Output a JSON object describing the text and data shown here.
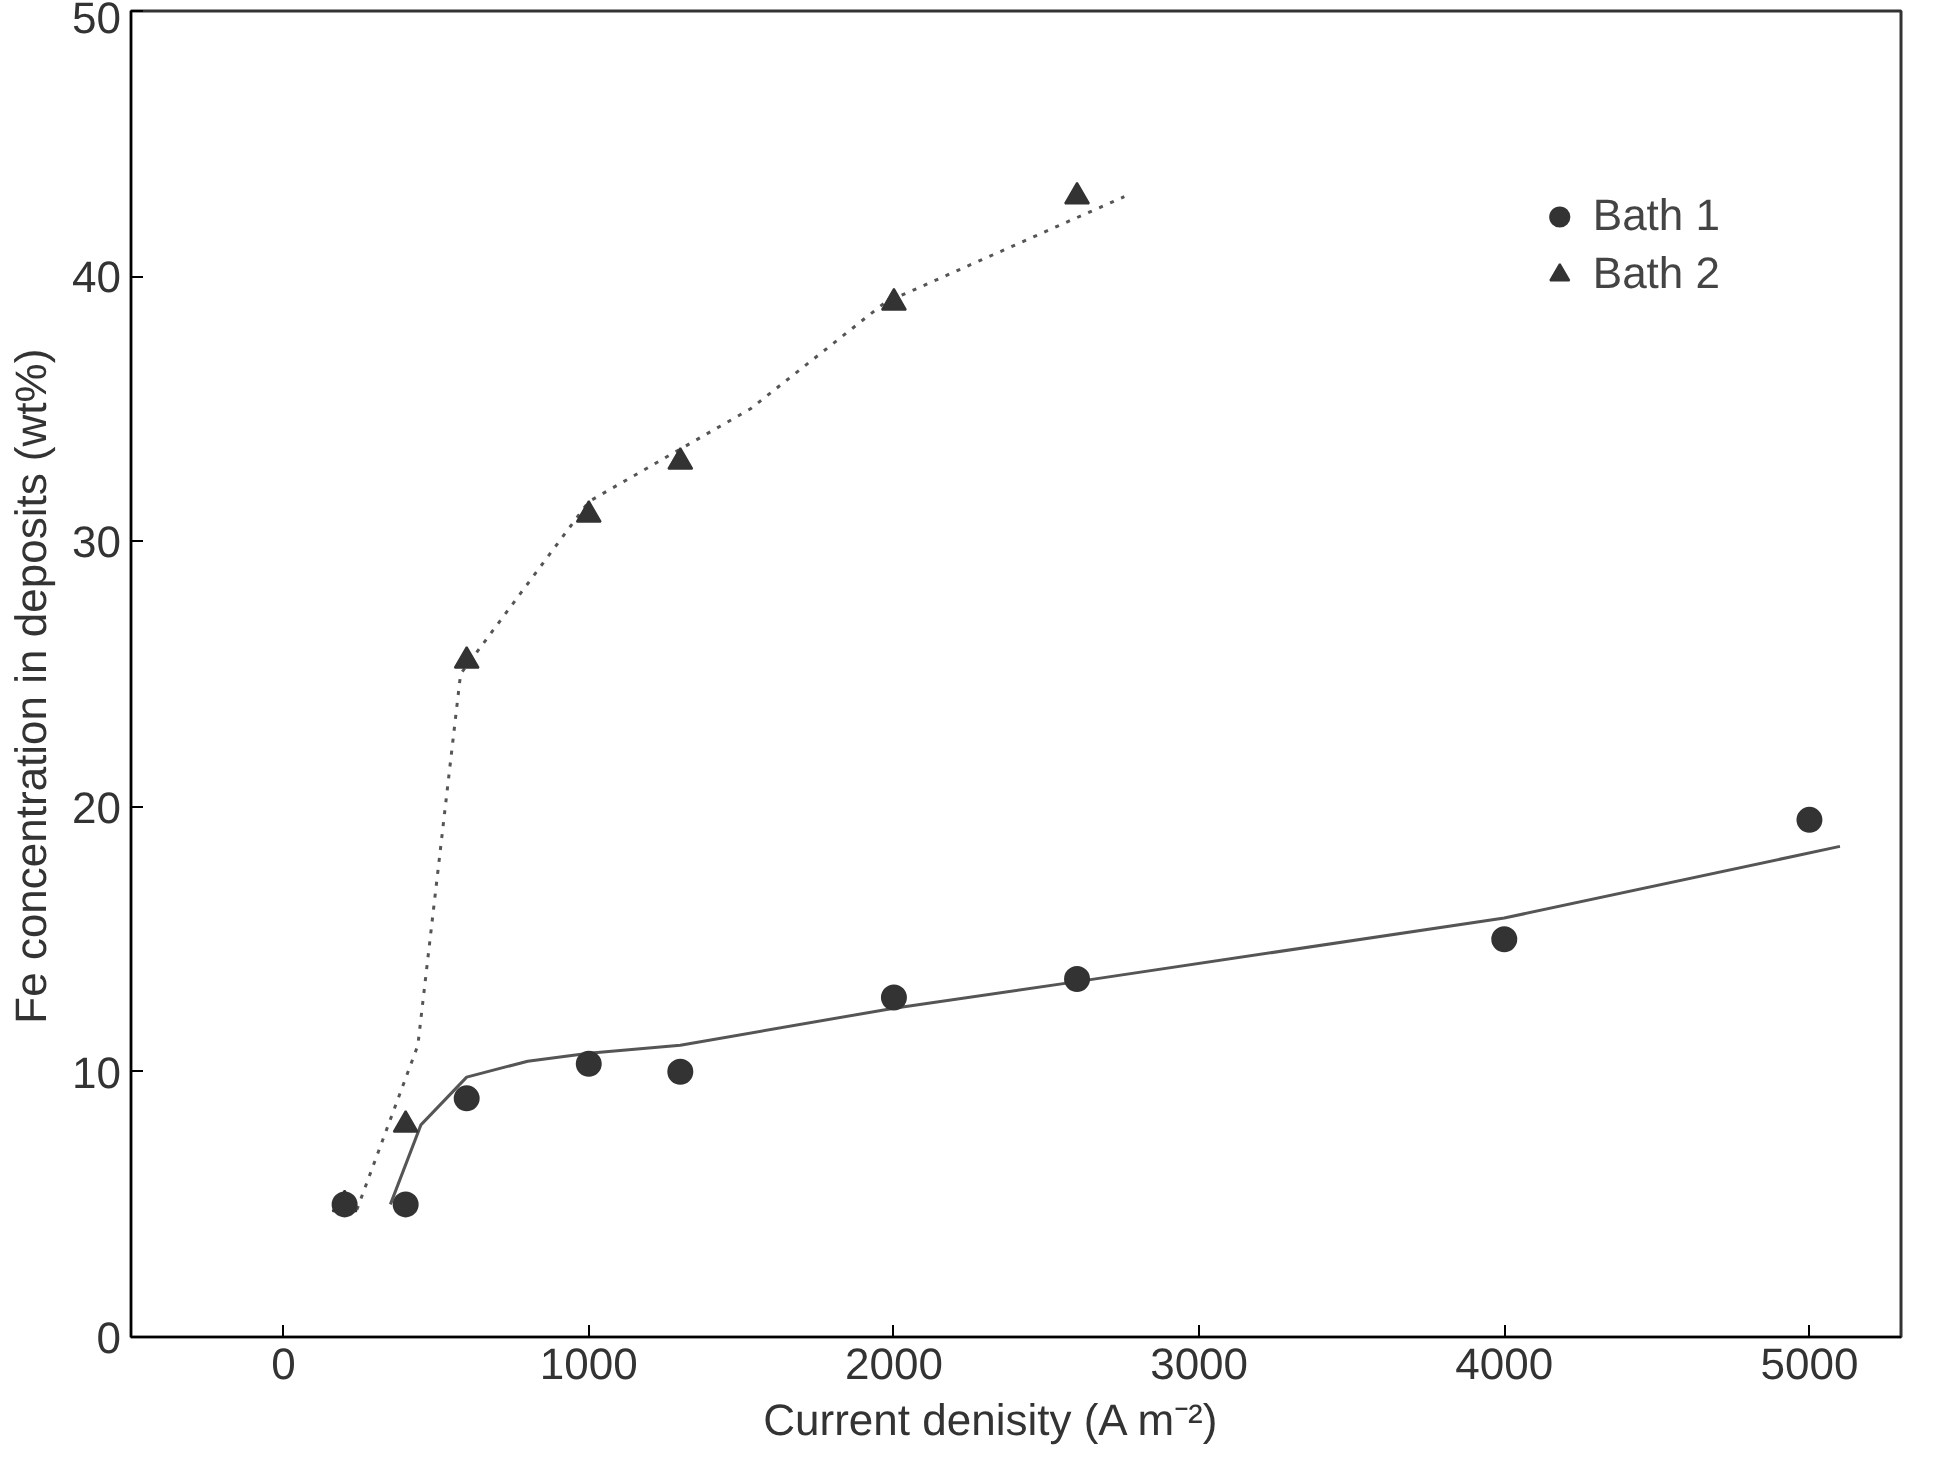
{
  "chart_data": {
    "type": "scatter",
    "xlabel": "Current denisity     (A m⁻²)",
    "ylabel": "Fe concentration in deposits   (wt%)",
    "xlim": [
      -500,
      5300
    ],
    "ylim": [
      0,
      50
    ],
    "xticks": [
      0,
      1000,
      2000,
      3000,
      4000,
      5000
    ],
    "yticks": [
      0,
      10,
      20,
      30,
      40,
      50
    ],
    "grid": false,
    "legend": "top right",
    "series": [
      {
        "name": "Bath 1",
        "color": "#333333",
        "marker": "circle",
        "x": [
          200,
          400,
          600,
          1000,
          1300,
          2000,
          2600,
          4000,
          5000
        ],
        "values": [
          5,
          5,
          9,
          10.3,
          10,
          12.8,
          13.5,
          15,
          19.5
        ]
      },
      {
        "name": "Bath 2",
        "color": "#333333",
        "marker": "triangle",
        "x": [
          200,
          400,
          600,
          1000,
          1300,
          2000,
          2600
        ],
        "values": [
          5,
          8,
          25.5,
          31,
          33,
          39,
          43
        ]
      },
      {
        "type": "line",
        "color": "#555555",
        "line_style": "solid",
        "x": [
          350,
          450,
          600,
          800,
          1000,
          1300,
          2000,
          2600,
          4000,
          5100
        ],
        "values": [
          5,
          8,
          9.8,
          10.4,
          10.7,
          11,
          12.4,
          13.4,
          15.8,
          18.5
        ]
      },
      {
        "type": "line",
        "color": "#555555",
        "line_style": "dotted",
        "x": [
          240,
          440,
          580,
          1000,
          1530,
          1970,
          2755
        ],
        "values": [
          4.8,
          11,
          25,
          31.5,
          35,
          39,
          43
        ]
      }
    ]
  }
}
